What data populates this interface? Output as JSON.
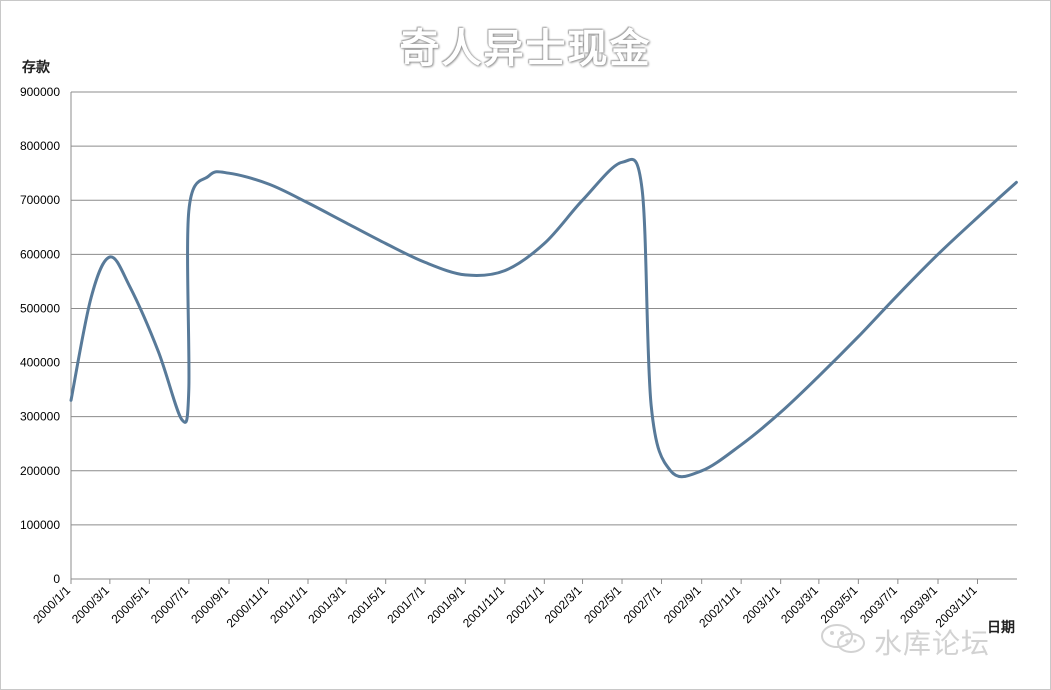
{
  "chart_data": {
    "type": "line",
    "title": "奇人异士现金",
    "ylabel": "存款",
    "xlabel": "日期",
    "ylim": [
      0,
      900000
    ],
    "yticks": [
      0,
      100000,
      200000,
      300000,
      400000,
      500000,
      600000,
      700000,
      800000,
      900000
    ],
    "x_tick_labels": [
      "2000/1/1",
      "2000/3/1",
      "2000/5/1",
      "2000/7/1",
      "2000/9/1",
      "2000/11/1",
      "2001/1/1",
      "2001/3/1",
      "2001/5/1",
      "2001/7/1",
      "2001/9/1",
      "2001/11/1",
      "2002/1/1",
      "2002/3/1",
      "2002/5/1",
      "2002/7/1",
      "2002/9/1",
      "2002/11/1",
      "2003/1/1",
      "2003/3/1",
      "2003/5/1",
      "2003/7/1",
      "2003/9/1",
      "2003/11/1"
    ],
    "grid": true,
    "series": [
      {
        "color": "#587a99",
        "points": [
          {
            "x": "2000/1/1",
            "y": 330000
          },
          {
            "x": "2000/2/1",
            "y": 520000
          },
          {
            "x": "2000/3/1",
            "y": 595000
          },
          {
            "x": "2000/4/1",
            "y": 540000
          },
          {
            "x": "2000/5/15",
            "y": 420000
          },
          {
            "x": "2000/6/20",
            "y": 295000
          },
          {
            "x": "2000/7/1",
            "y": 350000
          },
          {
            "x": "2000/7/1",
            "y": 680000
          },
          {
            "x": "2000/8/1",
            "y": 745000
          },
          {
            "x": "2000/9/1",
            "y": 750000
          },
          {
            "x": "2000/11/1",
            "y": 730000
          },
          {
            "x": "2001/1/1",
            "y": 695000
          },
          {
            "x": "2001/3/1",
            "y": 658000
          },
          {
            "x": "2001/5/1",
            "y": 620000
          },
          {
            "x": "2001/7/1",
            "y": 585000
          },
          {
            "x": "2001/9/1",
            "y": 562000
          },
          {
            "x": "2001/11/1",
            "y": 570000
          },
          {
            "x": "2002/1/1",
            "y": 620000
          },
          {
            "x": "2002/3/1",
            "y": 700000
          },
          {
            "x": "2002/5/1",
            "y": 770000
          },
          {
            "x": "2002/6/1",
            "y": 720000
          },
          {
            "x": "2002/6/15",
            "y": 320000
          },
          {
            "x": "2002/7/15",
            "y": 200000
          },
          {
            "x": "2002/9/1",
            "y": 200000
          },
          {
            "x": "2002/11/1",
            "y": 248000
          },
          {
            "x": "2003/1/1",
            "y": 308000
          },
          {
            "x": "2003/3/1",
            "y": 375000
          },
          {
            "x": "2003/5/1",
            "y": 448000
          },
          {
            "x": "2003/7/1",
            "y": 525000
          },
          {
            "x": "2003/9/1",
            "y": 600000
          },
          {
            "x": "2003/11/1",
            "y": 668000
          },
          {
            "x": "2003/12/31",
            "y": 733000
          }
        ]
      }
    ]
  },
  "watermark": {
    "text": "水库论坛",
    "icon": "wechat-logo-icon"
  }
}
